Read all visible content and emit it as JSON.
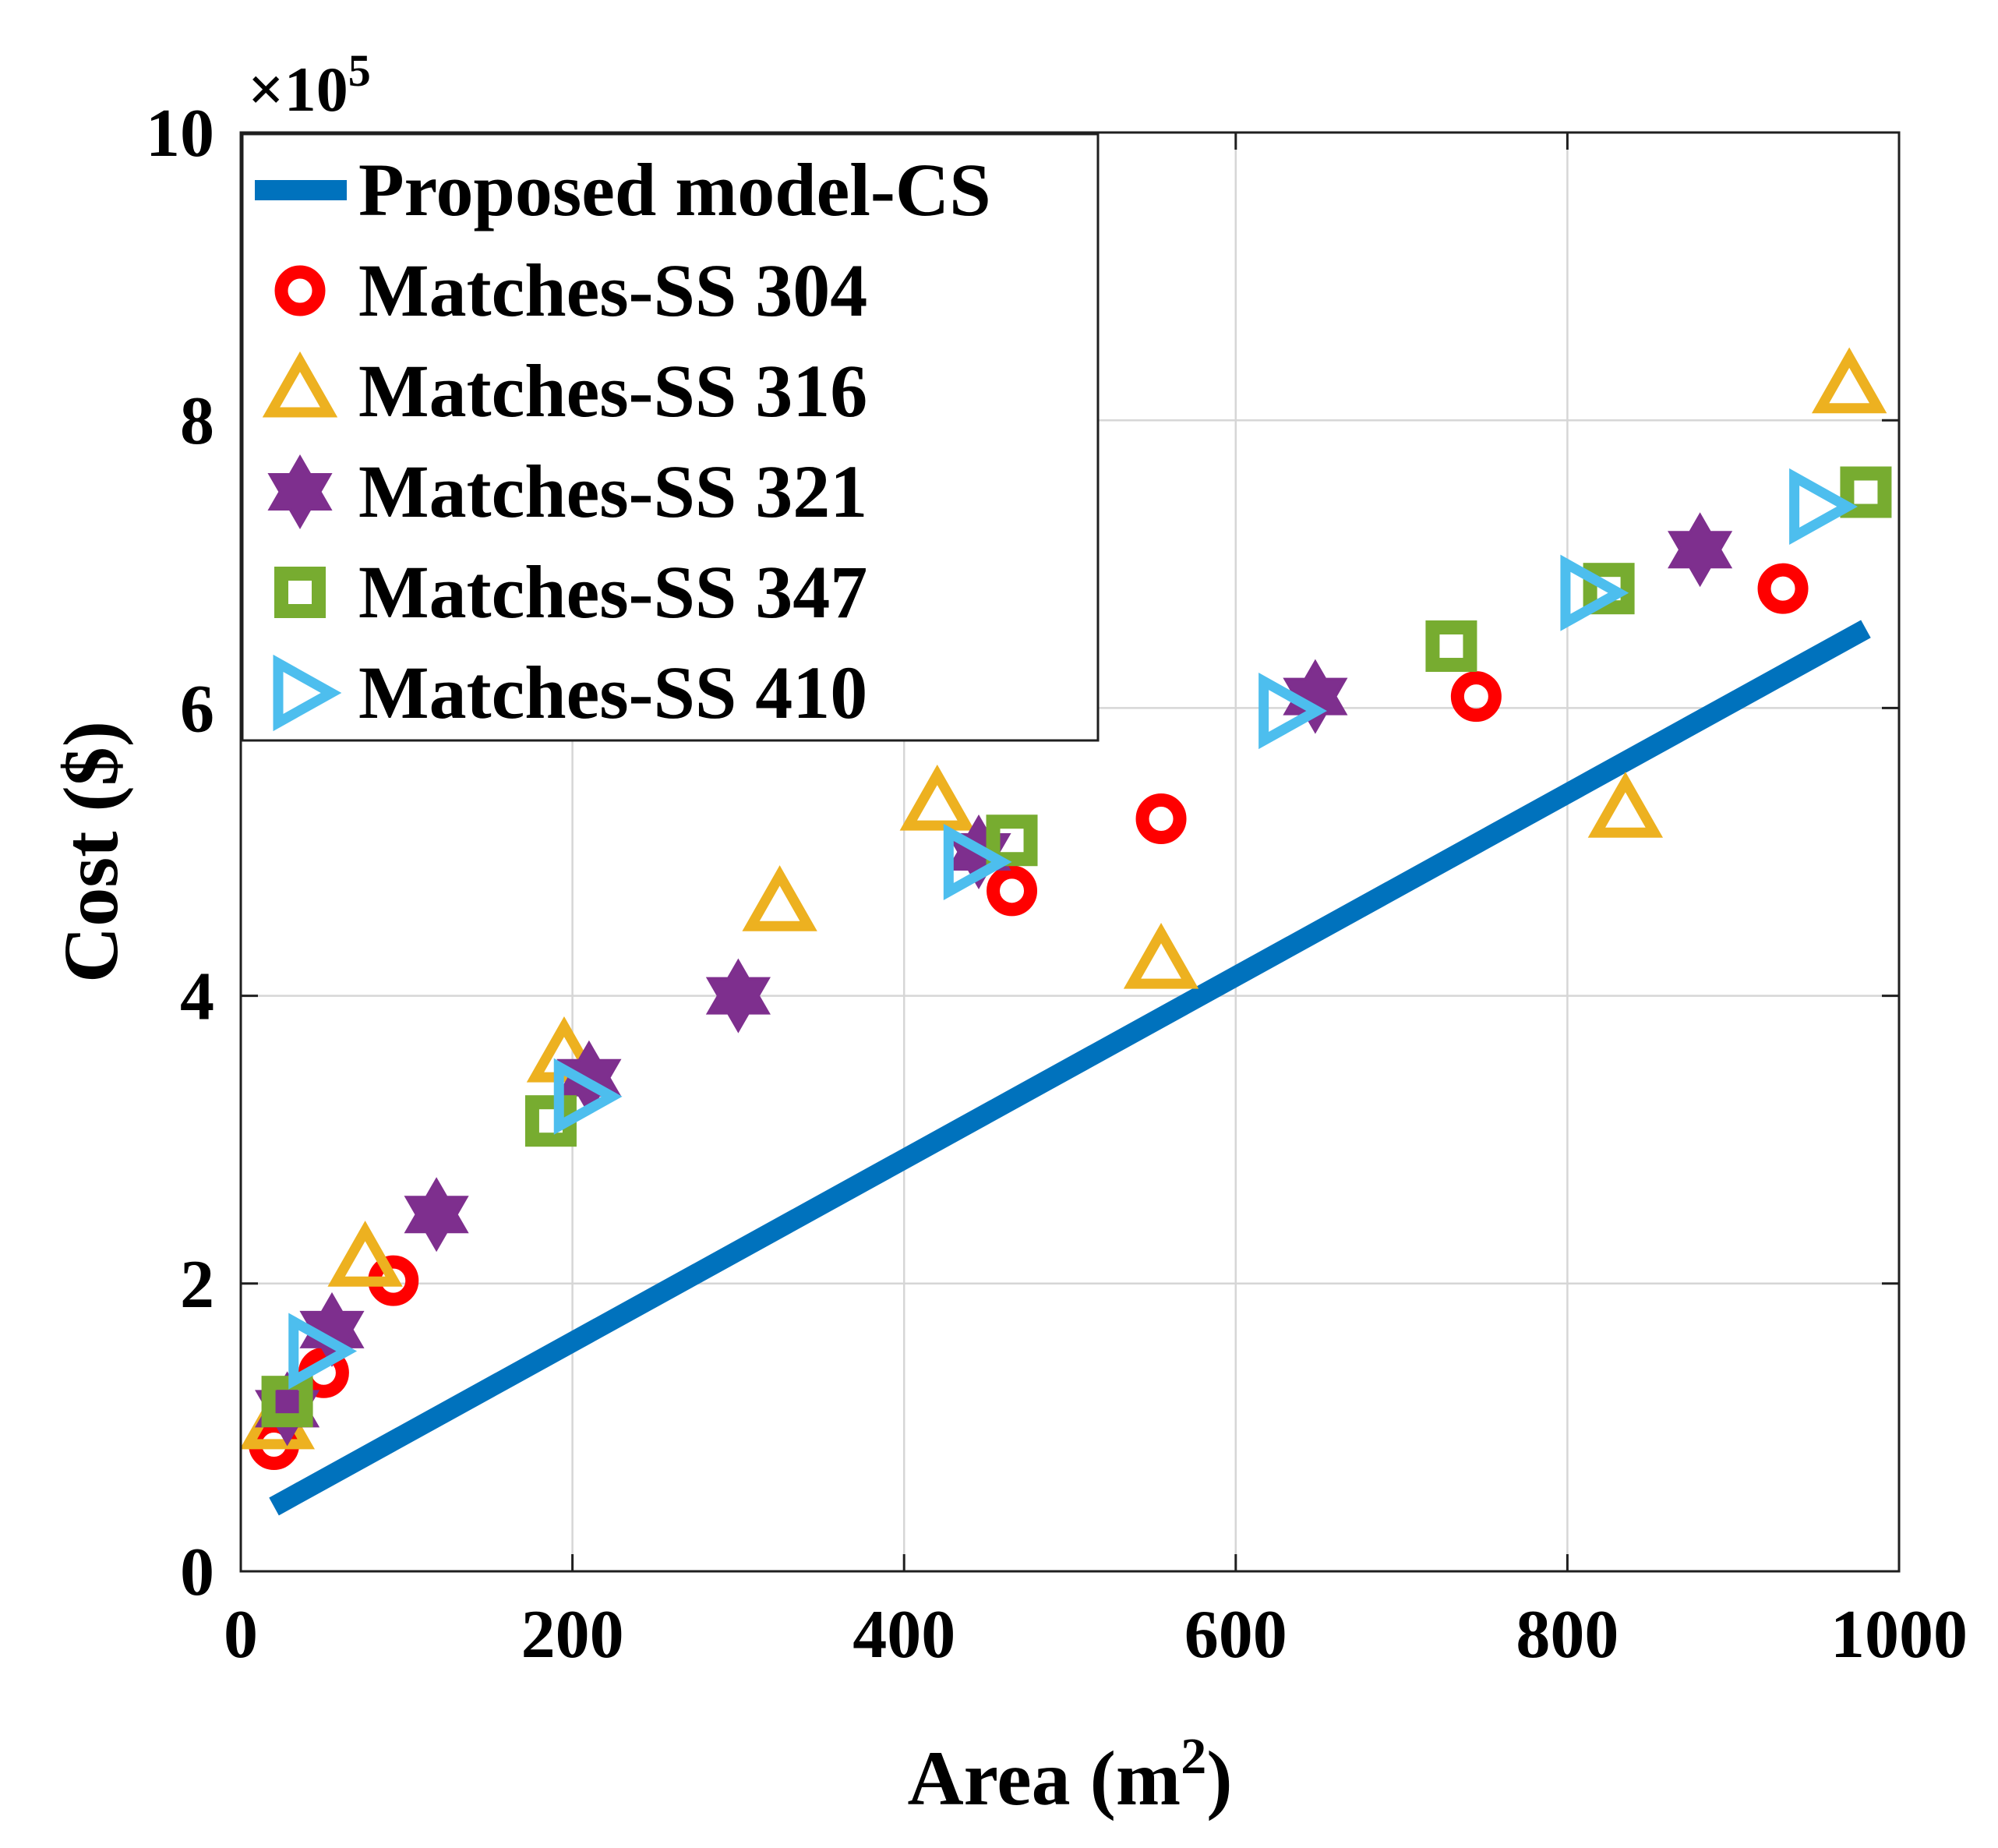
{
  "chart_data": {
    "type": "scatter",
    "title": "",
    "xlabel": "Area (m",
    "xlabel_superscript": "2",
    "xlabel_suffix": ")",
    "ylabel": "Cost ($)",
    "y_multiplier_prefix": "×10",
    "y_multiplier_exponent": "5",
    "xlim": [
      0,
      1000
    ],
    "ylim": [
      0,
      10
    ],
    "xticks": [
      0,
      200,
      400,
      600,
      800,
      1000
    ],
    "xtick_labels": [
      "0",
      "200",
      "400",
      "600",
      "800",
      "1000"
    ],
    "yticks": [
      0,
      2,
      4,
      6,
      8,
      10
    ],
    "ytick_labels": [
      "0",
      "2",
      "4",
      "6",
      "8",
      "10"
    ],
    "grid": true,
    "legend_position": "top-left",
    "series": [
      {
        "name": "Proposed model-CS",
        "kind": "line",
        "color": "#0072BD",
        "x": [
          20,
          980
        ],
        "y": [
          0.45,
          6.55
        ]
      },
      {
        "name": "Matches-SS 304",
        "kind": "marker",
        "marker": "circle",
        "color": "#FF0000",
        "x": [
          20,
          50,
          92,
          465,
          555,
          745,
          930
        ],
        "y": [
          0.88,
          1.38,
          2.02,
          4.73,
          5.23,
          6.08,
          6.83
        ]
      },
      {
        "name": "Matches-SS 316",
        "kind": "marker",
        "marker": "triangle-up",
        "color": "#EDB120",
        "x": [
          22,
          75,
          195,
          325,
          420,
          555,
          835,
          970
        ],
        "y": [
          1.03,
          2.16,
          3.58,
          4.63,
          5.33,
          4.23,
          5.28,
          8.23
        ]
      },
      {
        "name": "Matches-SS 321",
        "kind": "marker",
        "marker": "hexagram",
        "color": "#7E2F8E",
        "x": [
          28,
          55,
          118,
          210,
          300,
          445,
          648,
          880
        ],
        "y": [
          1.13,
          1.68,
          2.48,
          3.43,
          4.0,
          5.0,
          6.08,
          7.1
        ]
      },
      {
        "name": "Matches-SS 347",
        "kind": "marker",
        "marker": "square",
        "color": "#77AC30",
        "x": [
          28,
          187,
          465,
          730,
          825,
          980
        ],
        "y": [
          1.18,
          3.13,
          5.08,
          6.43,
          6.83,
          7.5
        ]
      },
      {
        "name": "Matches-SS 410",
        "kind": "marker",
        "marker": "triangle-right",
        "color": "#4DBEEE",
        "x": [
          45,
          205,
          440,
          630,
          812,
          950
        ],
        "y": [
          1.53,
          3.3,
          4.93,
          5.98,
          6.8,
          7.4
        ]
      }
    ]
  }
}
